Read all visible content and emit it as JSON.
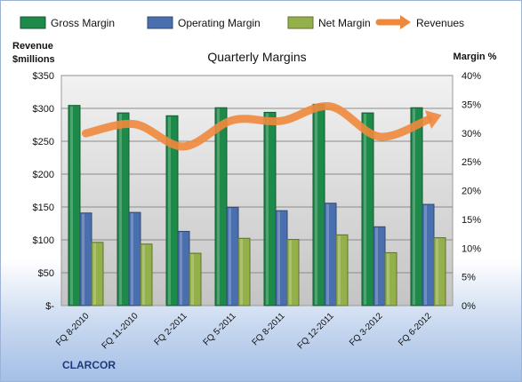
{
  "brand": "CLARCOR",
  "chart_data": {
    "type": "bar",
    "title": "Quarterly Margins",
    "ylabel_left": "Revenue $millions",
    "ylabel_right": "Margin %",
    "categories": [
      "FQ 8-2010",
      "FQ 11-2010",
      "FQ 2-2011",
      "FQ 5-2011",
      "FQ 8-2011",
      "FQ 12-2011",
      "FQ 3-2012",
      "FQ 6-2012"
    ],
    "ylim_left": [
      0,
      350
    ],
    "ylim_right": [
      0,
      40
    ],
    "left_ticks": [
      "$-",
      "$50",
      "$100",
      "$150",
      "$200",
      "$250",
      "$300",
      "$350"
    ],
    "right_ticks": [
      "0%",
      "5%",
      "10%",
      "15%",
      "20%",
      "25%",
      "30%",
      "35%",
      "40%"
    ],
    "grid": true,
    "legend_position": "top",
    "series": [
      {
        "name": "Gross Margin",
        "kind": "bar",
        "axis": "right",
        "color": "#1e8a4a",
        "values": [
          34.8,
          33.5,
          33.0,
          34.4,
          33.6,
          35.0,
          33.5,
          34.4
        ]
      },
      {
        "name": "Operating Margin",
        "kind": "bar",
        "axis": "right",
        "color": "#4a6fae",
        "values": [
          16.1,
          16.2,
          12.9,
          17.1,
          16.5,
          17.8,
          13.7,
          17.6
        ]
      },
      {
        "name": "Net Margin",
        "kind": "bar",
        "axis": "right",
        "color": "#93b04a",
        "values": [
          11.0,
          10.7,
          9.1,
          11.7,
          11.5,
          12.3,
          9.2,
          11.8
        ]
      },
      {
        "name": "Revenues",
        "kind": "line",
        "axis": "left",
        "color": "#f0883c",
        "values": [
          262,
          276,
          242,
          282,
          281,
          303,
          257,
          283
        ]
      }
    ]
  }
}
